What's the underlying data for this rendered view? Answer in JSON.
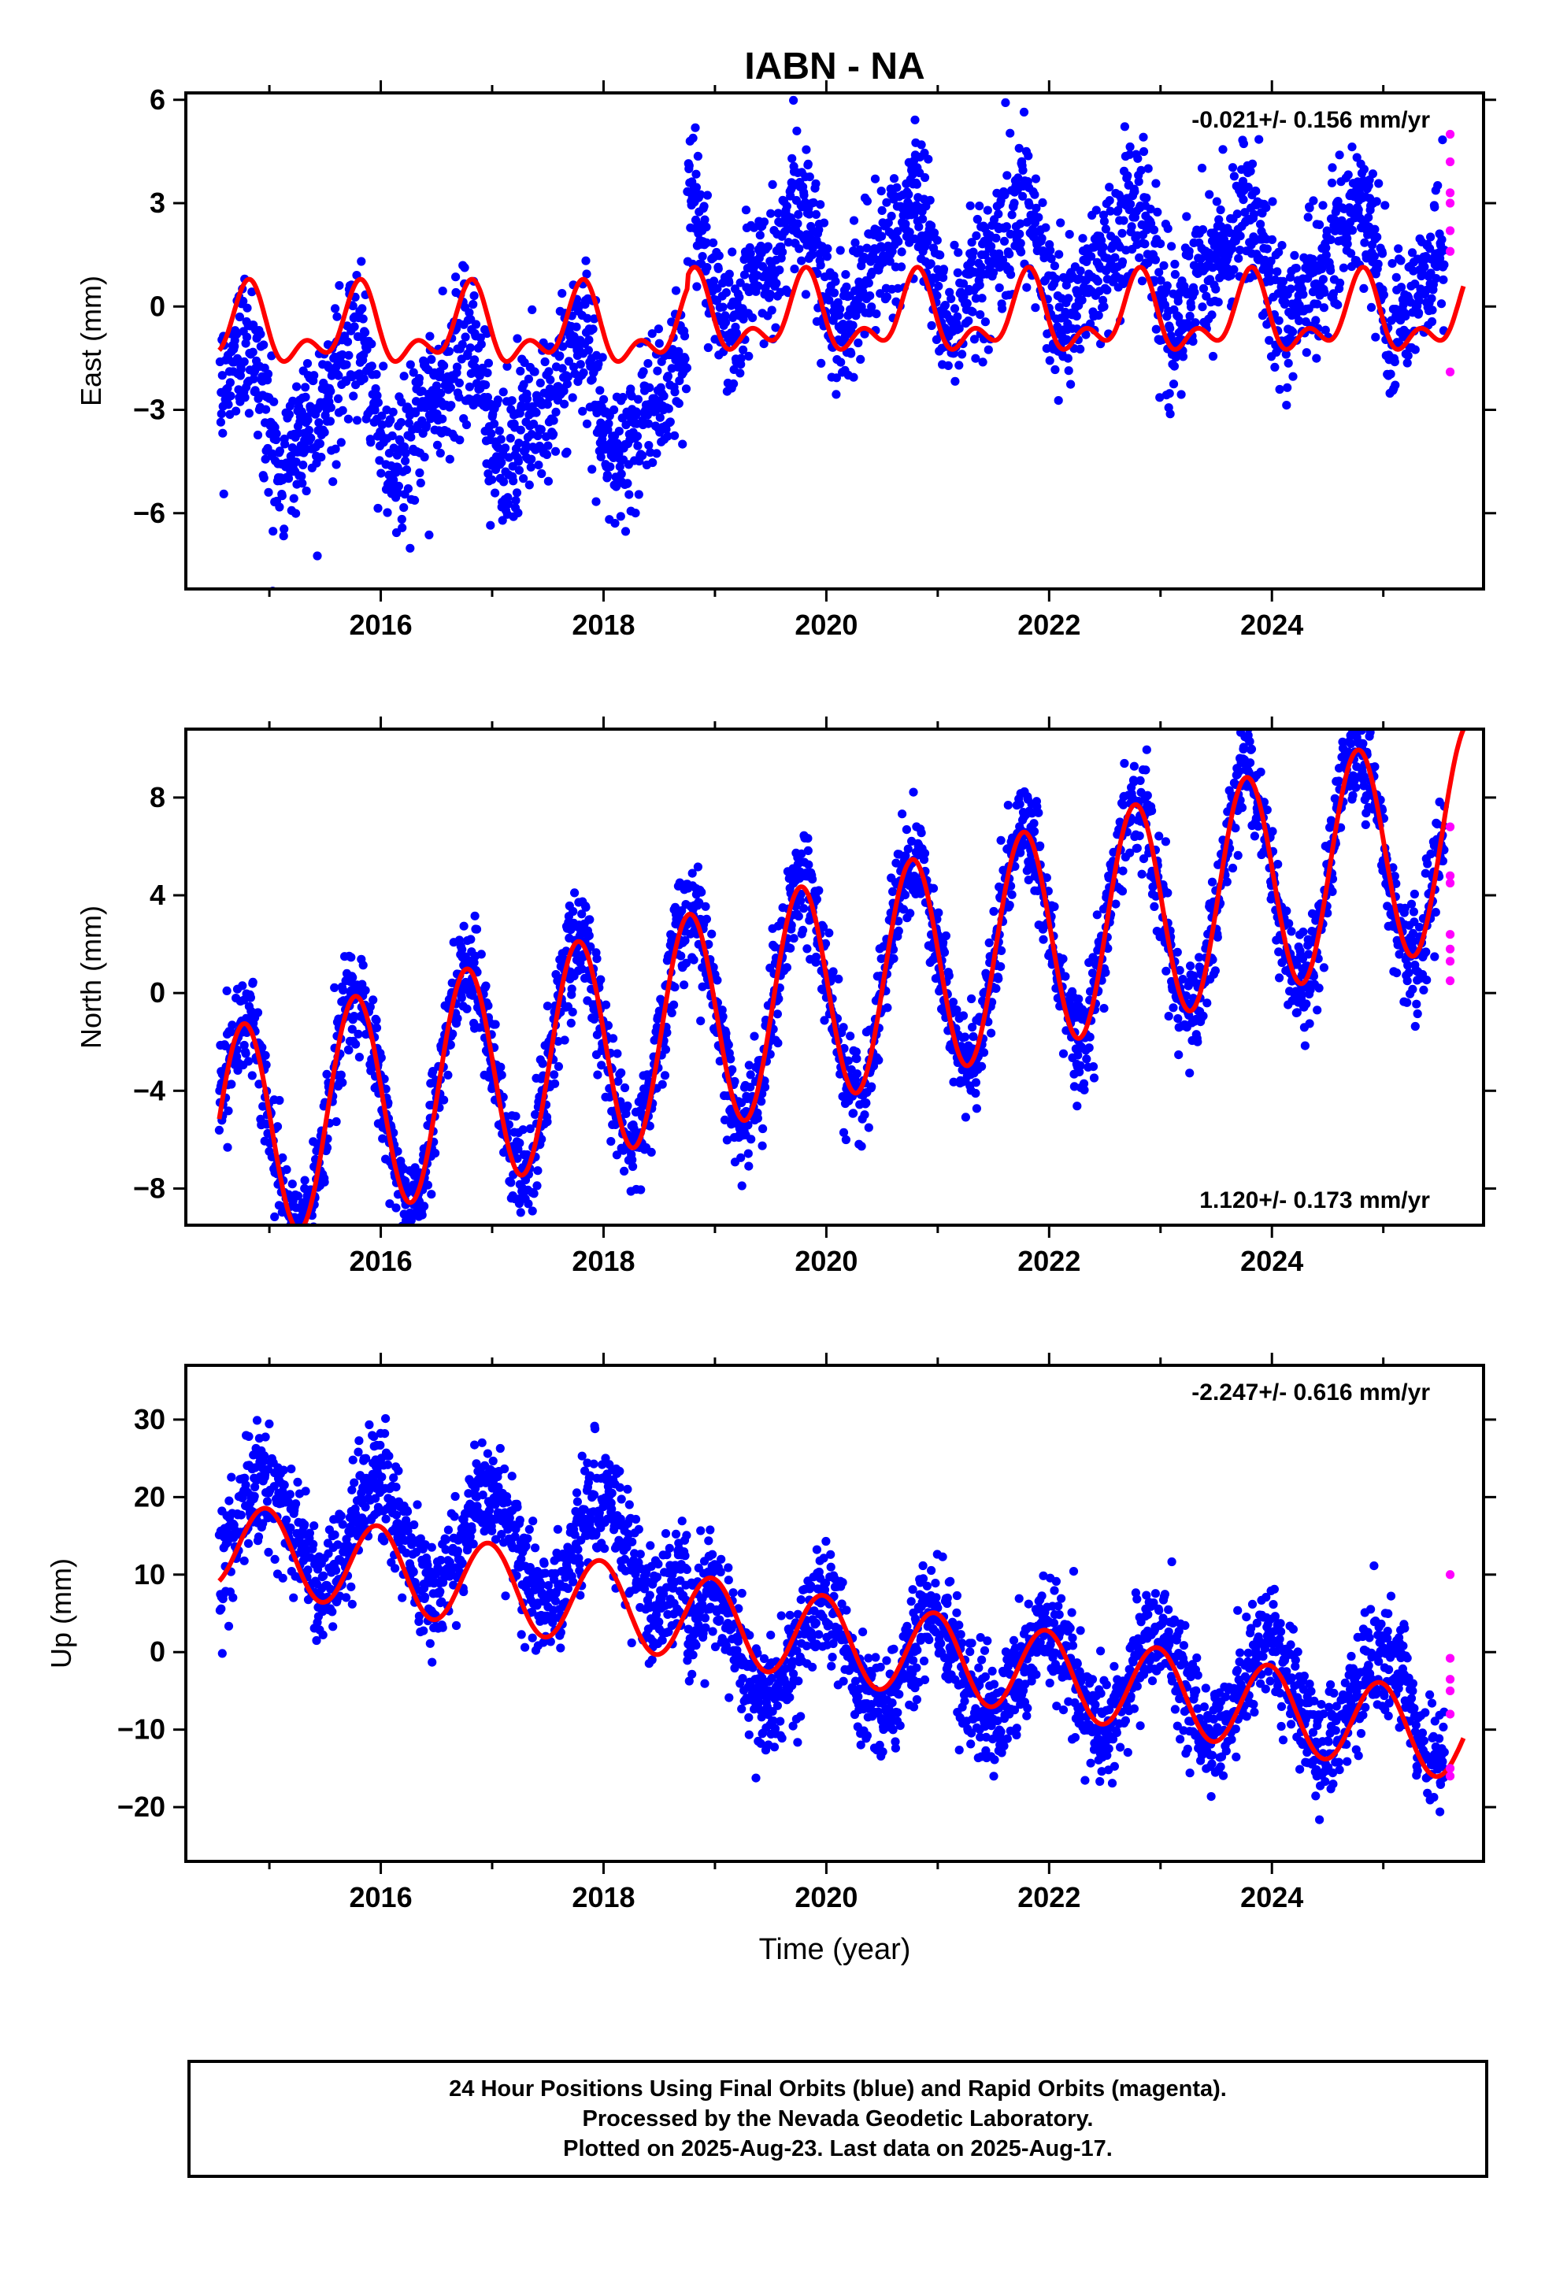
{
  "colors": {
    "final_orbits": "#0000ff",
    "rapid_orbits": "#ff00ff",
    "model_fit": "#ff0000",
    "frame": "#000000"
  },
  "chart_data": [
    {
      "type": "scatter",
      "title": "IABN - NA",
      "ylabel": "East (mm)",
      "xlabel": "",
      "xlim": [
        2014.25,
        2025.9
      ],
      "ylim": [
        -8.2,
        6.2
      ],
      "xticks": [
        2016,
        2018,
        2020,
        2022,
        2024
      ],
      "yticks": [
        -6,
        -3,
        0,
        3,
        6
      ],
      "ytick_labels": [
        "−6",
        "−3",
        "0",
        "3",
        "6"
      ],
      "rate_text": "-0.021+/- 0.156 mm/yr",
      "rate_position": "top-right",
      "data_start": 2014.55,
      "final_end": 2025.55,
      "series": [
        {
          "kind": "final",
          "note_offset": -3.0,
          "offset_after_2018_8": 1.5
        },
        {
          "kind": "rapid",
          "values": [
            5.0,
            4.2,
            3.3,
            3.0,
            2.2,
            1.6,
            -1.9
          ],
          "x": 2025.6
        }
      ],
      "model": {
        "offset_step": {
          "before": -0.35,
          "after": 0.0,
          "at": 2018.75
        },
        "annual_amp": 0.9,
        "annual_phase": 0.55,
        "semi_amp": 0.6,
        "semi_phase": 0.2
      }
    },
    {
      "type": "scatter",
      "title": "",
      "ylabel": "North (mm)",
      "xlabel": "",
      "xlim": [
        2014.25,
        2025.9
      ],
      "ylim": [
        -9.5,
        10.8
      ],
      "xticks": [
        2016,
        2018,
        2020,
        2022,
        2024
      ],
      "yticks": [
        -8,
        -4,
        0,
        4,
        8
      ],
      "ytick_labels": [
        "−8",
        "−4",
        "0",
        "4",
        "8"
      ],
      "rate_text": "1.120+/- 0.173 mm/yr",
      "rate_position": "bottom-right",
      "data_start": 2014.55,
      "final_end": 2025.55,
      "series": [
        {
          "kind": "final"
        },
        {
          "kind": "rapid",
          "values": [
            6.8,
            4.8,
            4.5,
            2.4,
            1.8,
            1.3,
            0.5
          ],
          "x": 2025.6
        }
      ],
      "model": {
        "trend_start_value": -6.0,
        "rate": 1.12,
        "annual_amp": 4.5,
        "annual_phase": 0.52
      }
    },
    {
      "type": "scatter",
      "title": "",
      "ylabel": "Up (mm)",
      "xlabel": "Time (year)",
      "xlim": [
        2014.25,
        2025.9
      ],
      "ylim": [
        -27,
        37
      ],
      "xticks": [
        2016,
        2018,
        2020,
        2022,
        2024
      ],
      "yticks": [
        -20,
        -10,
        0,
        10,
        20,
        30
      ],
      "ytick_labels": [
        "−20",
        "−10",
        "0",
        "10",
        "20",
        "30"
      ],
      "rate_text": "-2.247+/- 0.616 mm/yr",
      "rate_position": "top-right",
      "data_start": 2014.55,
      "final_end": 2025.55,
      "series": [
        {
          "kind": "final"
        },
        {
          "kind": "rapid",
          "values": [
            10.0,
            -0.8,
            -3.5,
            -5.0,
            -8.0,
            -15.0,
            -16.0
          ],
          "x": 2025.6
        }
      ],
      "model": {
        "trend_start_value": 14.0,
        "rate": -2.247,
        "annual_amp": 5.5,
        "annual_phase": 0.72
      }
    }
  ],
  "footer": {
    "line1": "24 Hour Positions Using Final Orbits (blue) and Rapid Orbits (magenta).",
    "line2": "Processed by the Nevada Geodetic Laboratory.",
    "line3": "Plotted on 2025-Aug-23. Last data on 2025-Aug-17."
  }
}
